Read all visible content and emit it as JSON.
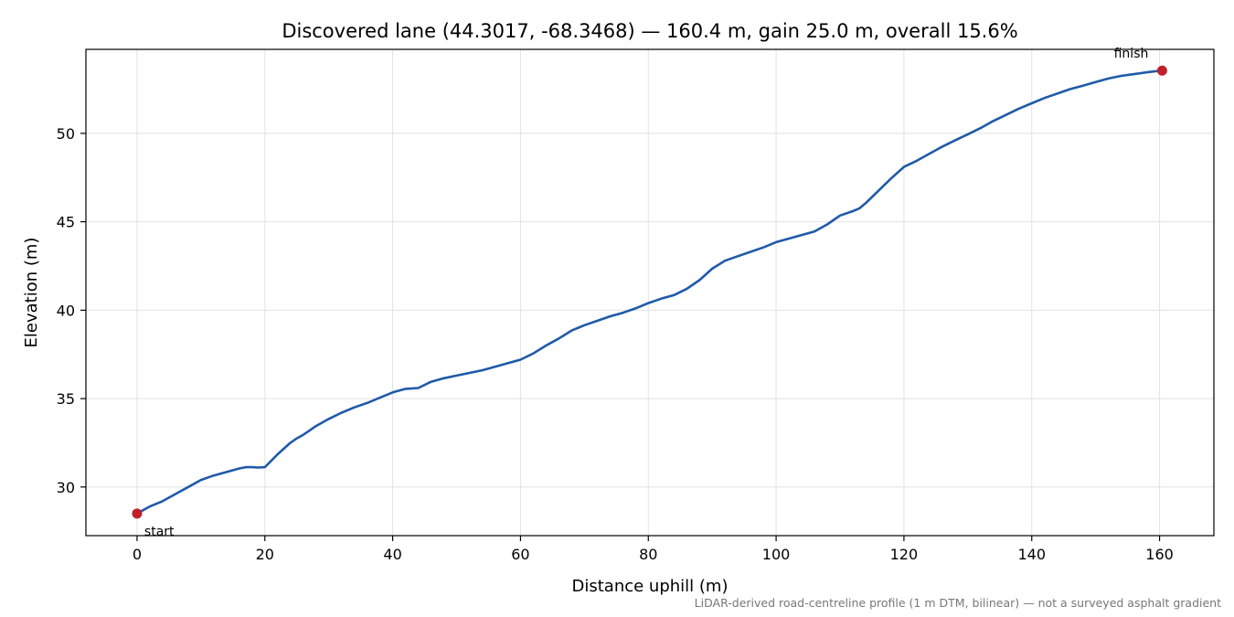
{
  "chart_data": {
    "type": "line",
    "title": "Discovered lane (44.3017, -68.3468) — 160.4 m, gain 25.0 m, overall 15.6%",
    "xlabel": "Distance uphill (m)",
    "ylabel": "Elevation (m)",
    "footnote": "LiDAR-derived road-centreline profile (1 m DTM, bilinear) — not a surveyed asphalt gradient",
    "xlim": [
      -8,
      168.5
    ],
    "ylim": [
      27.25,
      54.75
    ],
    "x_ticks": [
      0,
      20,
      40,
      60,
      80,
      100,
      120,
      140,
      160
    ],
    "y_ticks": [
      30,
      35,
      40,
      45,
      50
    ],
    "grid": true,
    "line_color": "#1f5aa8",
    "marker_color": "#c0202a",
    "series": [
      {
        "x": [
          0,
          2,
          4,
          6,
          8,
          10,
          12,
          14,
          16,
          17,
          18,
          19,
          20,
          22,
          24,
          25,
          26,
          27,
          28,
          30,
          32,
          34,
          36,
          38,
          40,
          42,
          44,
          46,
          48,
          50,
          52,
          54,
          56,
          58,
          60,
          62,
          64,
          66,
          68,
          70,
          72,
          74,
          76,
          78,
          80,
          82,
          84,
          86,
          88,
          90,
          92,
          94,
          96,
          98,
          100,
          102,
          104,
          106,
          108,
          110,
          112,
          113,
          114,
          116,
          118,
          120,
          122,
          124,
          126,
          128,
          130,
          132,
          134,
          136,
          138,
          140,
          142,
          144,
          146,
          148,
          150,
          152,
          154,
          156,
          158,
          160.4
        ],
        "y": [
          28.5,
          28.9,
          29.2,
          29.6,
          30.0,
          30.4,
          30.65,
          30.85,
          31.05,
          31.12,
          31.12,
          31.1,
          31.12,
          31.85,
          32.5,
          32.75,
          32.95,
          33.2,
          33.45,
          33.85,
          34.2,
          34.5,
          34.75,
          35.05,
          35.35,
          35.55,
          35.6,
          35.95,
          36.15,
          36.3,
          36.45,
          36.6,
          36.8,
          37.0,
          37.2,
          37.55,
          38.0,
          38.4,
          38.85,
          39.15,
          39.4,
          39.65,
          39.85,
          40.1,
          40.4,
          40.65,
          40.85,
          41.2,
          41.7,
          42.35,
          42.8,
          43.05,
          43.3,
          43.55,
          43.85,
          44.05,
          44.25,
          44.45,
          44.85,
          45.35,
          45.6,
          45.75,
          46.05,
          46.75,
          47.45,
          48.1,
          48.45,
          48.85,
          49.25,
          49.6,
          49.95,
          50.3,
          50.7,
          51.05,
          51.4,
          51.7,
          52.0,
          52.25,
          52.5,
          52.7,
          52.9,
          53.1,
          53.25,
          53.35,
          53.45,
          53.55
        ]
      }
    ],
    "annotations": [
      {
        "label": "start",
        "x": 0,
        "y": 28.5
      },
      {
        "label": "finish",
        "x": 160.4,
        "y": 53.55
      }
    ]
  }
}
